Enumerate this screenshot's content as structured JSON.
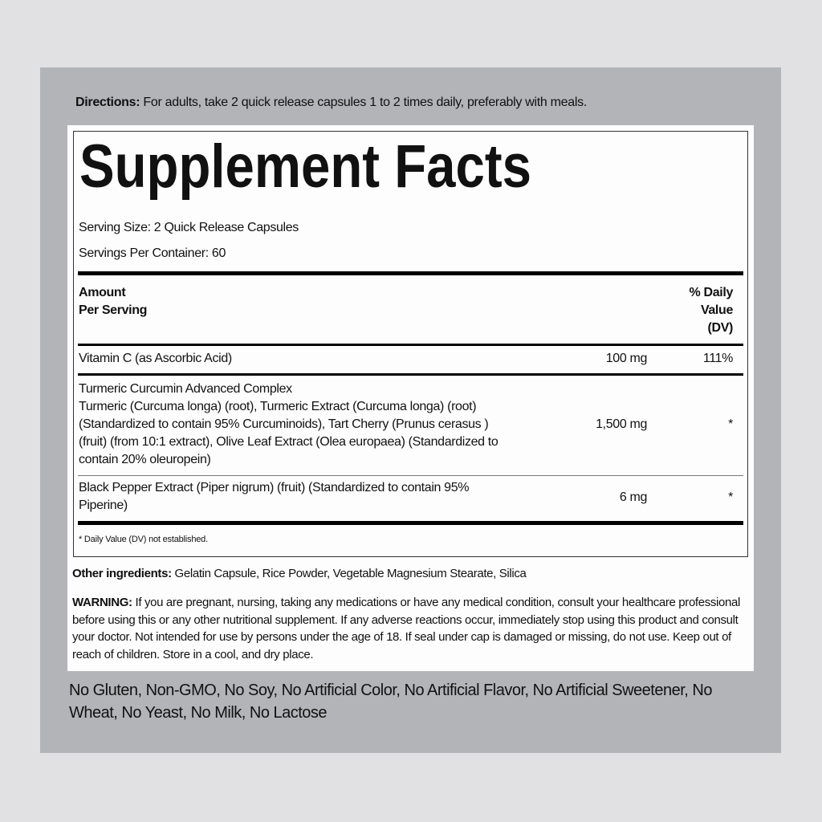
{
  "directions": {
    "label": "Directions:",
    "text": " For adults, take 2 quick release capsules 1 to 2 times daily, preferably with meals."
  },
  "facts": {
    "title": "Supplement Facts",
    "serving_size": "Serving Size: 2 Quick Release Capsules",
    "servings_per_container": "Servings Per Container: 60",
    "header": {
      "amount_line1": "Amount",
      "amount_line2": "Per Serving",
      "dv_line1": "% Daily",
      "dv_line2": "Value",
      "dv_line3": "(DV)"
    },
    "rows": [
      {
        "name": [
          "Vitamin C (as Ascorbic Acid)"
        ],
        "amount": "100 mg",
        "dv": "111%"
      },
      {
        "name": [
          "Turmeric Curcumin Advanced Complex",
          "Turmeric (Curcuma longa) (root), Turmeric Extract (Curcuma longa) (root)",
          "(Standardized to contain 95% Curcuminoids), Tart Cherry (Prunus cerasus )",
          "(fruit) (from 10:1 extract), Olive Leaf Extract (Olea europaea) (Standardized to",
          "contain 20% oleuropein)"
        ],
        "amount": "1,500 mg",
        "dv": "*"
      },
      {
        "name": [
          "Black Pepper Extract (Piper nigrum) (fruit) (Standardized to contain 95%",
          "Piperine)"
        ],
        "amount": "6 mg",
        "dv": "*"
      }
    ],
    "footnote": "* Daily Value (DV) not established."
  },
  "other": {
    "label": "Other ingredients:",
    "text": " Gelatin Capsule, Rice Powder, Vegetable Magnesium Stearate, Silica"
  },
  "warning": {
    "label": "WARNING:",
    "text": " If you are pregnant, nursing, taking any medications or have any medical condition, consult your healthcare professional before using this or any other nutritional supplement. If any adverse reactions occur, immediately stop using this product and consult your doctor. Not intended for use by persons under the age of 18. If seal under cap is damaged or missing, do not use. Keep out of reach of children. Store in a cool, and dry place."
  },
  "free_from": "No Gluten, Non-GMO, No Soy, No Artificial Color, No Artificial Flavor, No Artificial Sweetener, No Wheat, No Yeast, No Milk, No Lactose",
  "colors": {
    "panel": "#b2b4b7",
    "background": "#e1e0e2",
    "label": "#fdfdfd"
  }
}
